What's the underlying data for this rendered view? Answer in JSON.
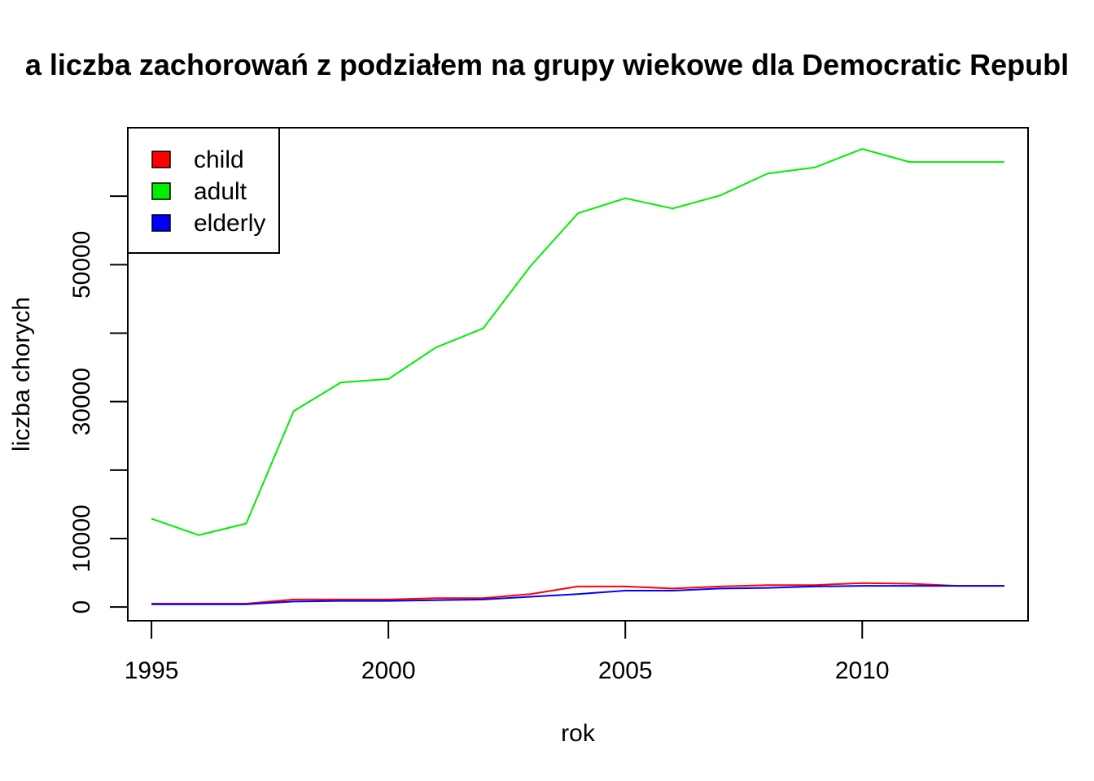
{
  "chart_data": {
    "type": "line",
    "title": "a liczba zachorowań z podziałem na grupy wiekowe dla Democratic Republ",
    "xlabel": "rok",
    "ylabel": "liczba chorych",
    "xlim": [
      1994.5,
      2013.5
    ],
    "ylim": [
      -2000,
      70000
    ],
    "x_ticks": [
      1995,
      2000,
      2005,
      2010
    ],
    "x_tick_labels": [
      "1995",
      "2000",
      "2005",
      "2010"
    ],
    "y_ticks": [
      0,
      10000,
      20000,
      30000,
      40000,
      50000,
      60000
    ],
    "y_tick_labels": [
      "0",
      "10000",
      "",
      "30000",
      "",
      "50000",
      ""
    ],
    "grid": false,
    "legend_position": "top-left",
    "x": [
      1995,
      1996,
      1997,
      1998,
      1999,
      2000,
      2001,
      2002,
      2003,
      2004,
      2005,
      2006,
      2007,
      2008,
      2009,
      2010,
      2011,
      2012,
      2013
    ],
    "series": [
      {
        "name": "child",
        "color": "#ff0000",
        "values": [
          500,
          500,
          500,
          1100,
          1100,
          1100,
          1300,
          1300,
          1900,
          3000,
          3000,
          2700,
          3000,
          3200,
          3200,
          3500,
          3400,
          3100,
          3100
        ]
      },
      {
        "name": "adult",
        "color": "#00ee00",
        "values": [
          12900,
          10500,
          12200,
          28600,
          32800,
          33300,
          37900,
          40700,
          49800,
          57500,
          59700,
          58200,
          60100,
          63300,
          64200,
          66900,
          65000,
          65000,
          65000
        ]
      },
      {
        "name": "elderly",
        "color": "#0000ff",
        "values": [
          400,
          400,
          400,
          800,
          900,
          900,
          1000,
          1100,
          1500,
          1900,
          2400,
          2400,
          2700,
          2800,
          3000,
          3100,
          3100,
          3100,
          3100
        ]
      }
    ]
  }
}
